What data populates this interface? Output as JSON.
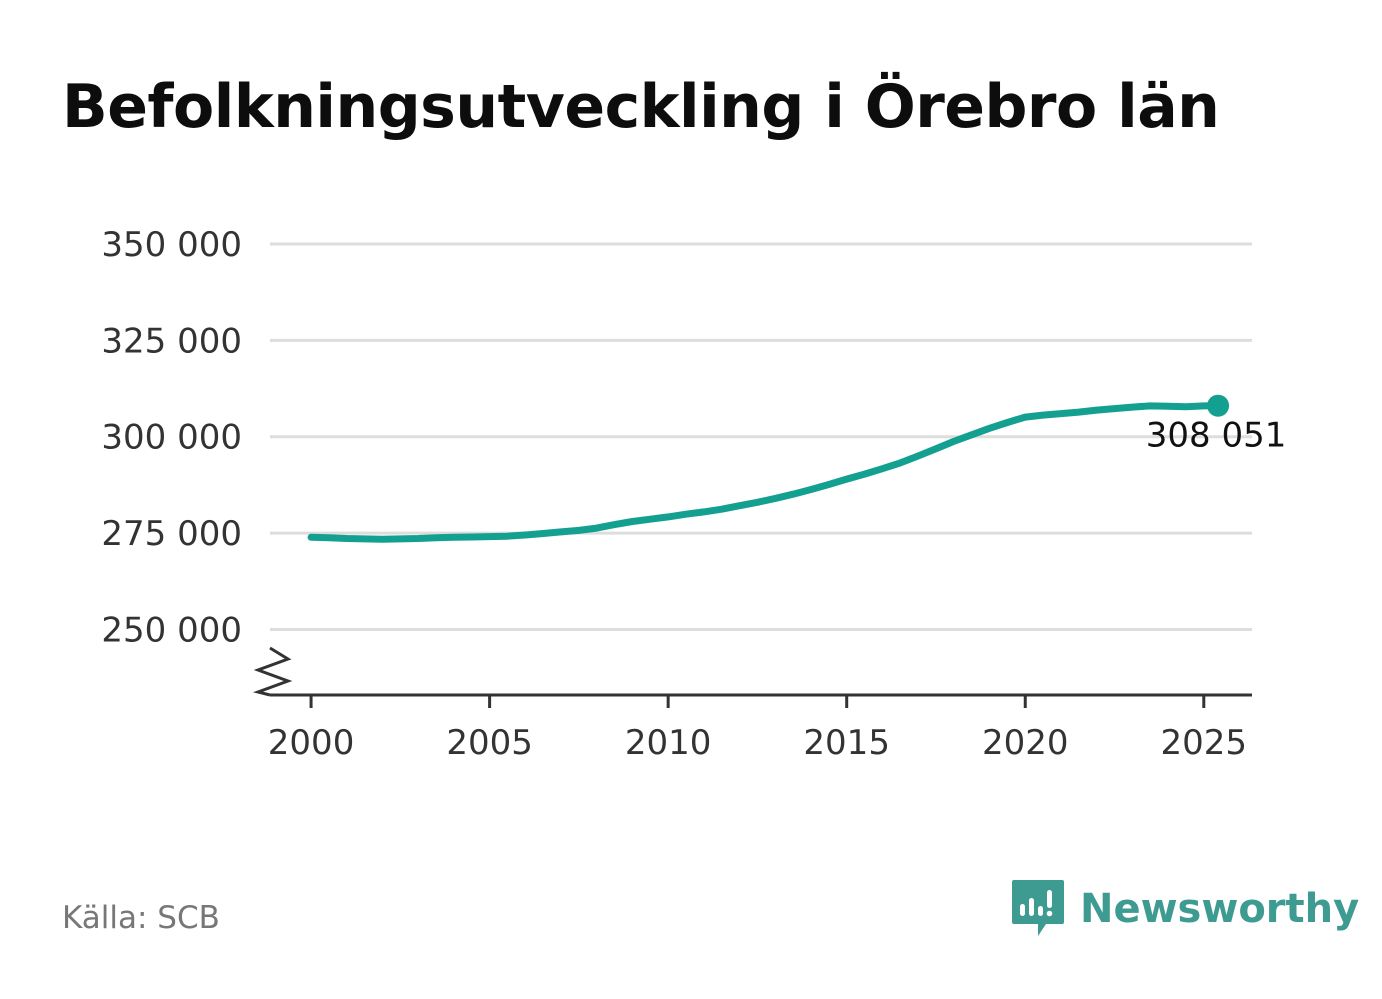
{
  "colors": {
    "line": "#14a090",
    "grid": "#dddddd",
    "axis": "#333333",
    "brand": "#3e9b92",
    "source": "#777777"
  },
  "source": "Källa: SCB",
  "brand": {
    "name": "Newsworthy",
    "icon": "newsworthy-logo-icon"
  },
  "chart_data": {
    "type": "line",
    "title": "Befolkningsutveckling i Örebro län",
    "xlabel": "",
    "ylabel": "",
    "xlim": [
      1998.85,
      2026.35
    ],
    "ylim": [
      233000,
      350000
    ],
    "axis_break": true,
    "grid": "horizontal",
    "yticks": [
      250000,
      275000,
      300000,
      325000,
      350000
    ],
    "ytick_labels": [
      "250 000",
      "275 000",
      "300 000",
      "325 000",
      "350 000"
    ],
    "xticks": [
      2000,
      2005,
      2010,
      2015,
      2020,
      2025
    ],
    "xtick_labels": [
      "2000",
      "2005",
      "2010",
      "2015",
      "2020",
      "2025"
    ],
    "series": [
      {
        "x": [
          2000.0,
          2000.5,
          2001.0,
          2001.5,
          2002.0,
          2002.5,
          2003.0,
          2003.5,
          2004.0,
          2004.5,
          2005.0,
          2005.5,
          2006.0,
          2006.5,
          2007.0,
          2007.5,
          2008.0,
          2008.5,
          2009.0,
          2009.5,
          2010.0,
          2010.5,
          2011.0,
          2011.5,
          2012.0,
          2012.5,
          2013.0,
          2013.5,
          2014.0,
          2014.5,
          2015.0,
          2015.5,
          2016.0,
          2016.5,
          2017.0,
          2017.5,
          2018.0,
          2018.5,
          2019.0,
          2019.5,
          2020.0,
          2020.5,
          2021.0,
          2021.5,
          2022.0,
          2022.5,
          2023.0,
          2023.5,
          2024.0,
          2024.5,
          2025.0,
          2025.4
        ],
        "values": [
          273900,
          273800,
          273600,
          273500,
          273400,
          273500,
          273600,
          273800,
          273900,
          274000,
          274100,
          274200,
          274500,
          274900,
          275300,
          275700,
          276300,
          277200,
          278000,
          278600,
          279200,
          279900,
          280500,
          281200,
          282100,
          283000,
          284000,
          285100,
          286300,
          287600,
          289000,
          290300,
          291700,
          293200,
          295000,
          296900,
          298800,
          300500,
          302200,
          303700,
          305100,
          305600,
          306000,
          306400,
          306900,
          307300,
          307700,
          308000,
          307900,
          307800,
          308000,
          308051
        ]
      }
    ],
    "annotations": [
      {
        "x": 2025.4,
        "y": 308051,
        "text": "308 051"
      }
    ]
  }
}
